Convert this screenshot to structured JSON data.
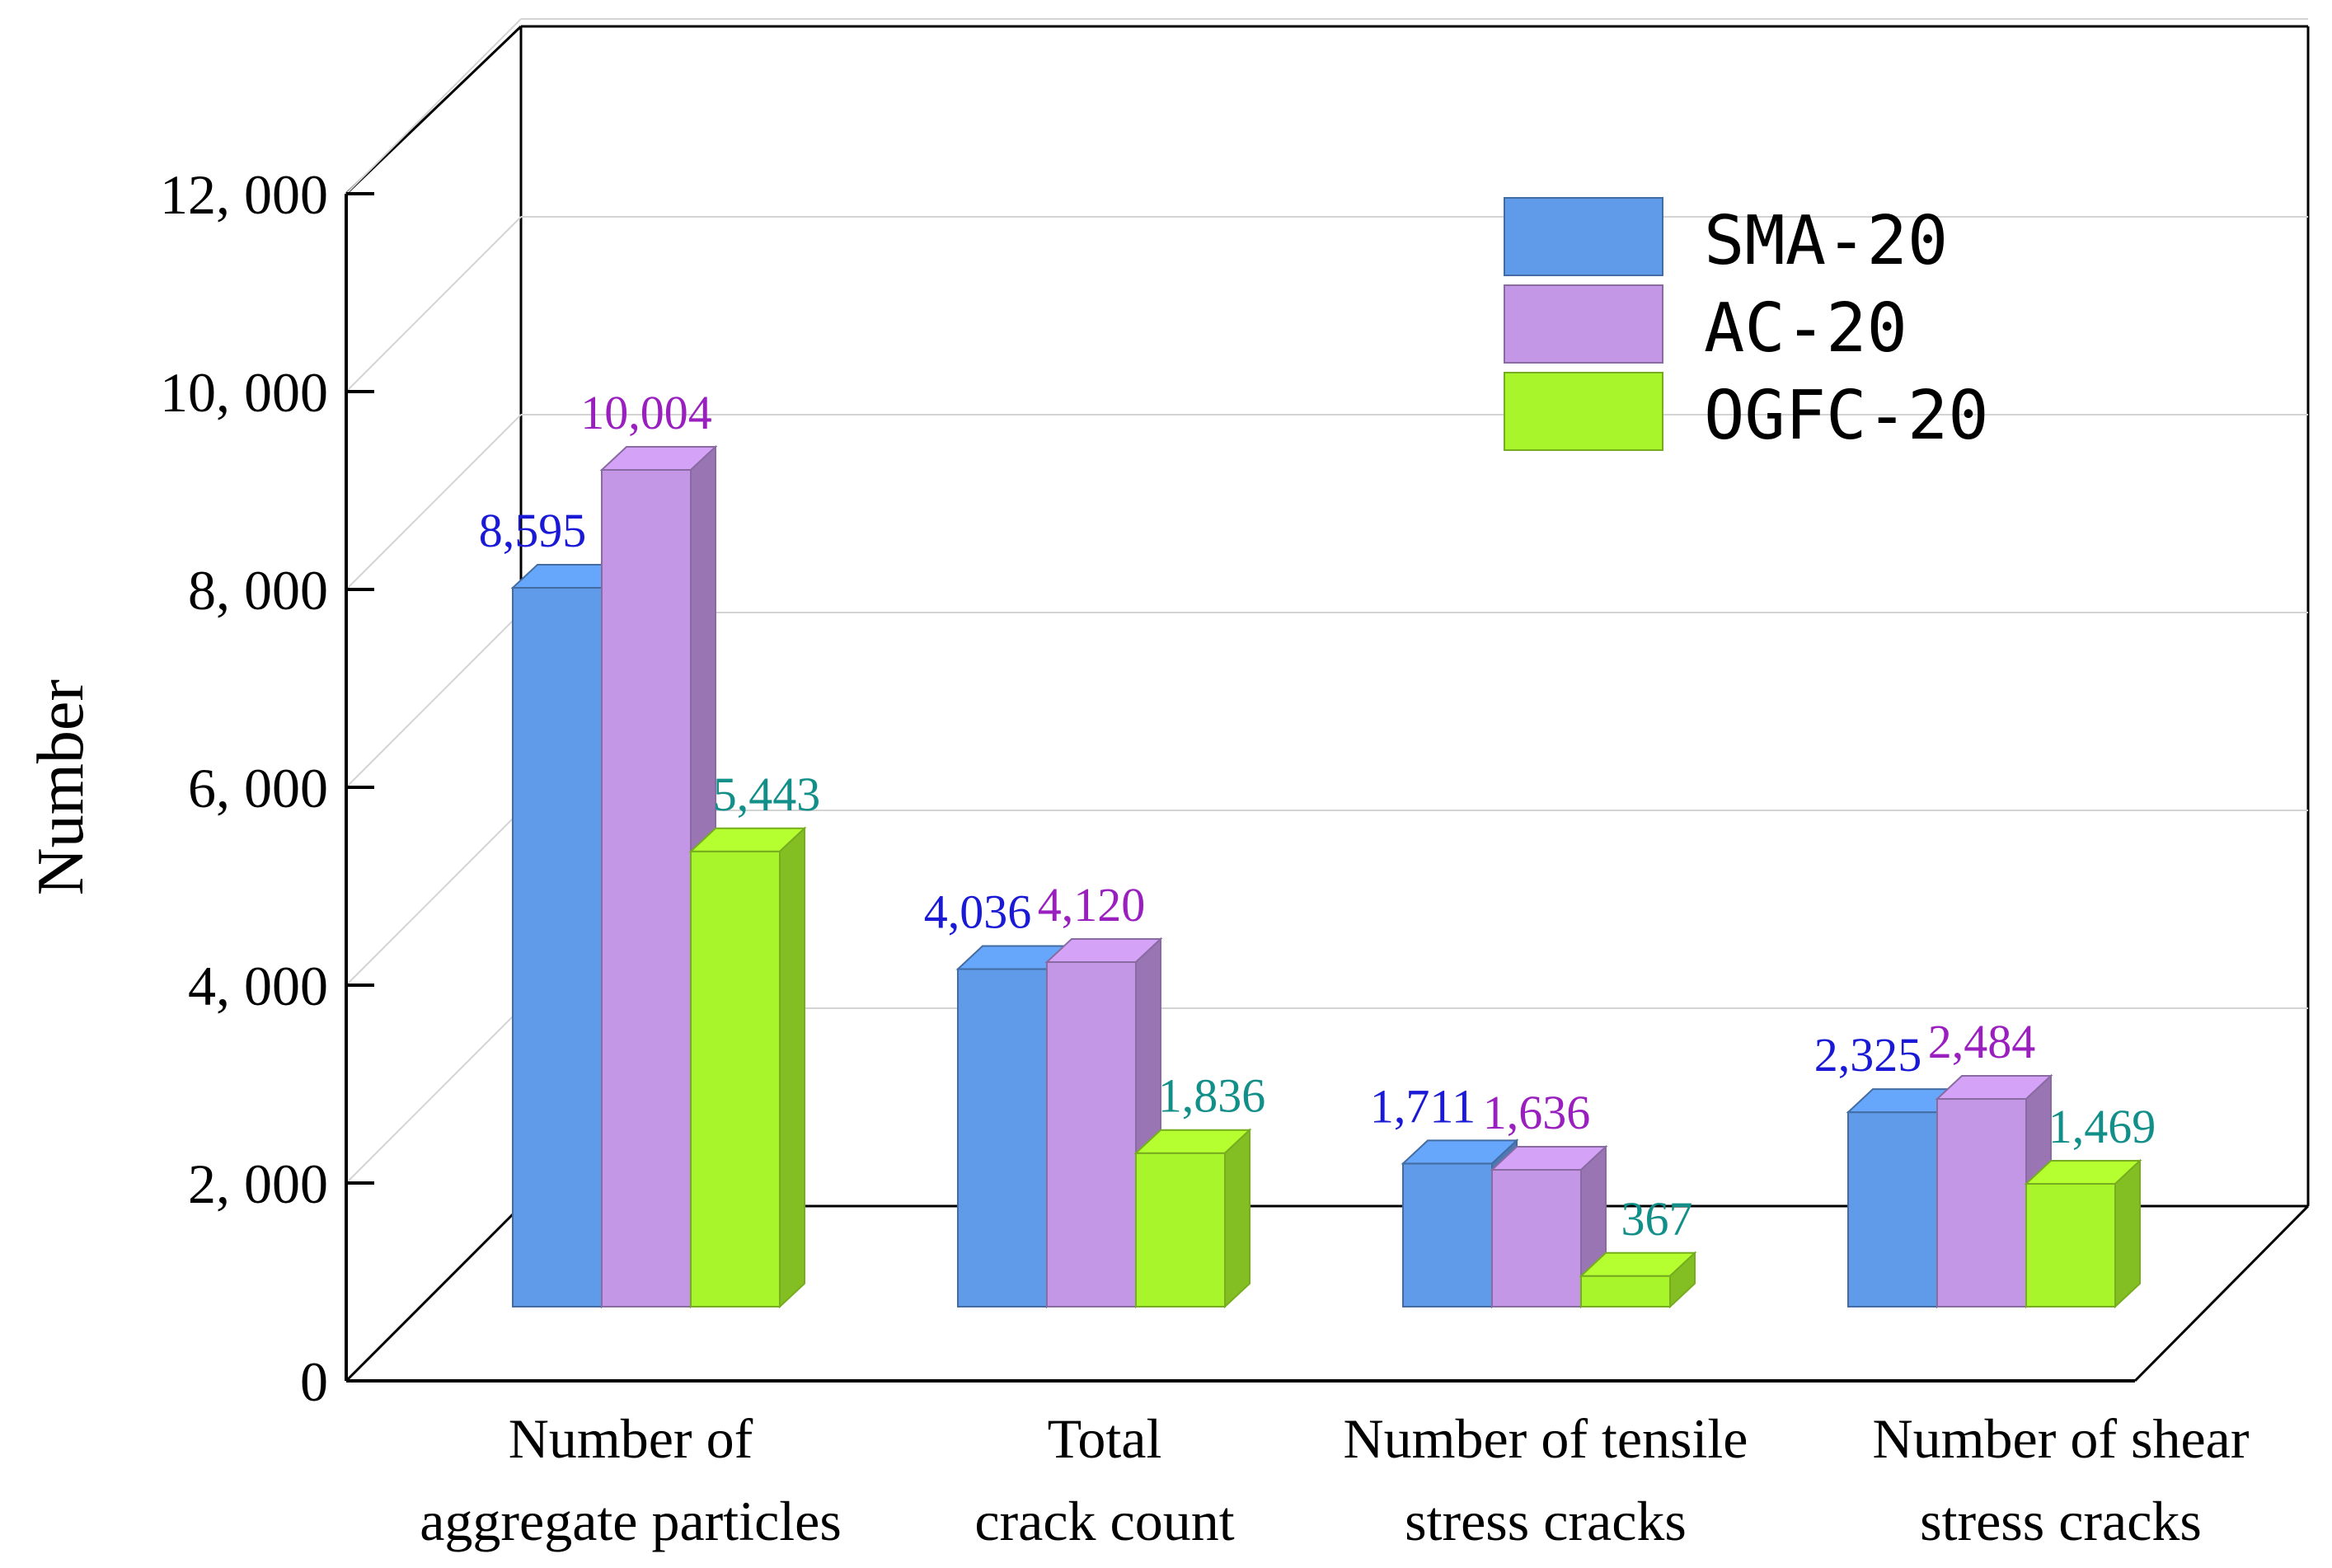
{
  "chart_data": {
    "type": "bar",
    "ylabel": "Number",
    "xlabel": "",
    "ylim": [
      0,
      12000
    ],
    "yticks": [
      0,
      2000,
      4000,
      6000,
      8000,
      10000,
      12000
    ],
    "ytick_labels": [
      "0",
      "2, 000",
      "4, 000",
      "6, 000",
      "8, 000",
      "10, 000",
      "12, 000"
    ],
    "grid": true,
    "legend_position": "top-right",
    "categories": [
      {
        "line1": "Number of",
        "line2": "aggregate particles"
      },
      {
        "line1": "Total",
        "line2": "crack count"
      },
      {
        "line1": "Number of  tensile",
        "line2": "stress cracks"
      },
      {
        "line1": "Number of  shear",
        "line2": "stress cracks"
      }
    ],
    "series": [
      {
        "name": "SMA-20",
        "values": [
          8595,
          4036,
          1711,
          2325
        ],
        "labels": [
          "8,595",
          "4,036",
          "1,711",
          "2,325"
        ],
        "color": "#5f9be8",
        "label_color": "#1a1ad6"
      },
      {
        "name": "AC-20",
        "values": [
          10004,
          4120,
          1636,
          2484
        ],
        "labels": [
          "10,004",
          "4,120",
          "1,636",
          "2,484"
        ],
        "color": "#c497e6",
        "label_color": "#9a1fbf"
      },
      {
        "name": "OGFC-20",
        "values": [
          5443,
          1836,
          367,
          1469
        ],
        "labels": [
          "5,443",
          "1,836",
          "367",
          "1,469"
        ],
        "color": "#a8f52c",
        "label_color": "#138f8a"
      }
    ]
  }
}
